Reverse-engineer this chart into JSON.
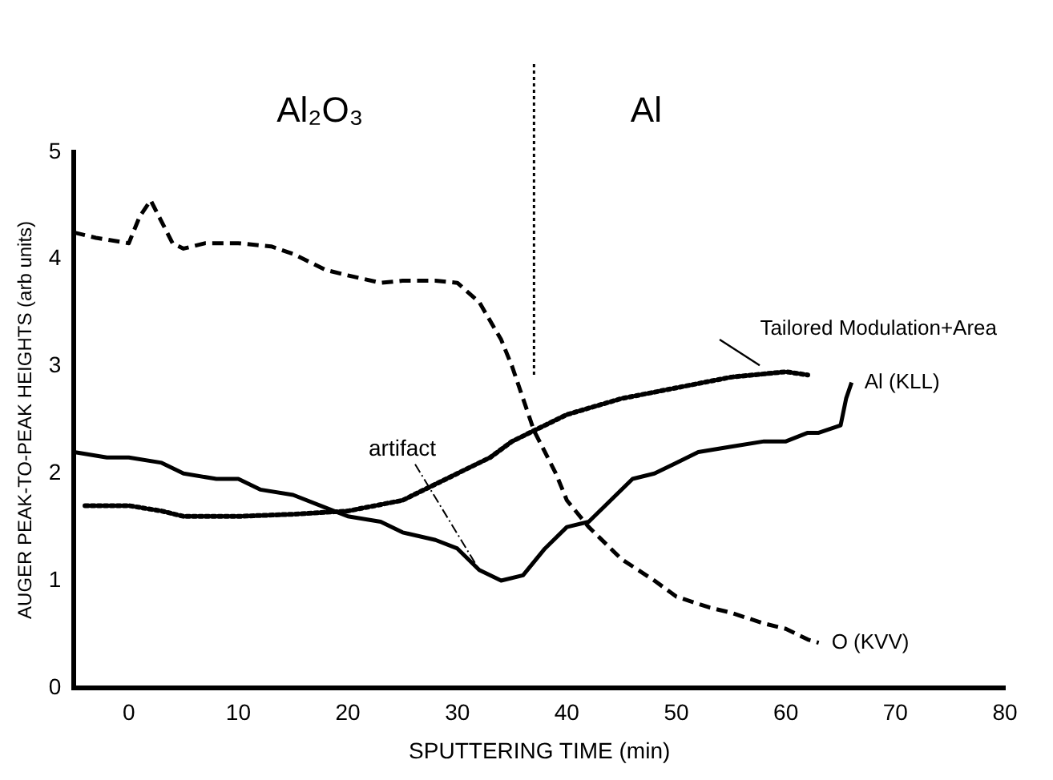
{
  "chart_data": {
    "type": "line",
    "xlabel": "SPUTTERING TIME (min)",
    "ylabel": "AUGER PEAK-TO-PEAK HEIGHTS (arb units)",
    "xlim": [
      -5,
      80
    ],
    "xticks": [
      0,
      10,
      20,
      30,
      40,
      50,
      60,
      70,
      80
    ],
    "ylim": [
      0,
      5
    ],
    "yticks": [
      0,
      1,
      2,
      3,
      4,
      5
    ],
    "grid": false,
    "legend": false,
    "marker": "none",
    "series": [
      {
        "name": "O (KVV)",
        "color": "#000000",
        "line_style": "dashed",
        "x": [
          -5,
          -3,
          0,
          1,
          2,
          3,
          4,
          5,
          7,
          10,
          13,
          15,
          18,
          20,
          23,
          25,
          28,
          30,
          32,
          34,
          35,
          37,
          39,
          40,
          42,
          45,
          48,
          50,
          53,
          55,
          58,
          60,
          62,
          63
        ],
        "values": [
          4.25,
          4.2,
          4.15,
          4.4,
          4.55,
          4.35,
          4.15,
          4.1,
          4.15,
          4.15,
          4.12,
          4.05,
          3.9,
          3.85,
          3.78,
          3.8,
          3.8,
          3.78,
          3.6,
          3.25,
          3.0,
          2.4,
          2.0,
          1.75,
          1.5,
          1.2,
          1.0,
          0.85,
          0.75,
          0.7,
          0.6,
          0.55,
          0.45,
          0.42
        ]
      },
      {
        "name": "Al (KLL)",
        "color": "#000000",
        "line_style": "solid",
        "x": [
          -5,
          -2,
          0,
          3,
          5,
          8,
          10,
          12,
          15,
          18,
          20,
          23,
          25,
          28,
          30,
          32,
          34,
          36,
          38,
          40,
          42,
          44,
          46,
          48,
          50,
          52,
          55,
          58,
          60,
          62,
          63,
          65,
          65.5,
          66
        ],
        "values": [
          2.2,
          2.15,
          2.15,
          2.1,
          2.0,
          1.95,
          1.95,
          1.85,
          1.8,
          1.68,
          1.6,
          1.55,
          1.45,
          1.38,
          1.3,
          1.1,
          1.0,
          1.05,
          1.3,
          1.5,
          1.55,
          1.75,
          1.95,
          2.0,
          2.1,
          2.2,
          2.25,
          2.3,
          2.3,
          2.38,
          2.38,
          2.45,
          2.7,
          2.85
        ]
      },
      {
        "name": "Tailored Modulation+Area",
        "color": "#000000",
        "line_style": "dotted",
        "x": [
          -4,
          0,
          3,
          5,
          10,
          15,
          20,
          25,
          28,
          30,
          33,
          35,
          38,
          40,
          45,
          50,
          55,
          60,
          62
        ],
        "values": [
          1.7,
          1.7,
          1.65,
          1.6,
          1.6,
          1.62,
          1.65,
          1.75,
          1.9,
          2.0,
          2.15,
          2.3,
          2.45,
          2.55,
          2.7,
          2.8,
          2.9,
          2.95,
          2.92
        ]
      }
    ],
    "ref_lines": [
      {
        "axis": "x",
        "value": 37,
        "label": null,
        "color": "#000000",
        "line_style": "dotted"
      }
    ],
    "annotations": [
      "Al₂O₃",
      "Al",
      {
        "text": "artifact",
        "x": 32,
        "y": 1.1
      }
    ]
  }
}
